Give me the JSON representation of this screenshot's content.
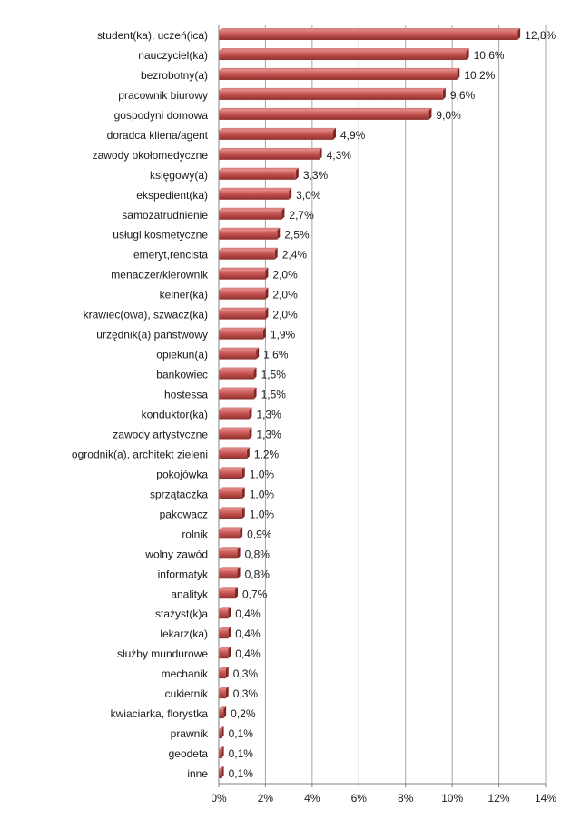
{
  "chart_data": {
    "type": "bar",
    "orientation": "horizontal",
    "title": "",
    "xlabel": "",
    "ylabel": "",
    "xlim": [
      0,
      14
    ],
    "x_ticks": [
      0,
      2,
      4,
      6,
      8,
      10,
      12,
      14
    ],
    "x_tick_labels": [
      "0%",
      "2%",
      "4%",
      "6%",
      "8%",
      "10%",
      "12%",
      "14%"
    ],
    "grid": true,
    "bar_color": "#c0504d",
    "categories": [
      "student(ka), uczeń(ica)",
      "nauczyciel(ka)",
      "bezrobotny(a)",
      "pracownik biurowy",
      "gospodyni domowa",
      "doradca kliena/agent",
      "zawody okołomedyczne",
      "księgowy(a)",
      "ekspedient(ka)",
      "samozatrudnienie",
      "usługi kosmetyczne",
      "emeryt,rencista",
      "menadzer/kierownik",
      "kelner(ka)",
      "krawiec(owa), szwacz(ka)",
      "urzędnik(a) państwowy",
      "opiekun(a)",
      "bankowiec",
      "hostessa",
      "konduktor(ka)",
      "zawody artystyczne",
      "ogrodnik(a), architekt zieleni",
      "pokojówka",
      "sprzątaczka",
      "pakowacz",
      "rolnik",
      "wolny zawód",
      "informatyk",
      "analityk",
      "stażyst(k)a",
      "lekarz(ka)",
      "służby mundurowe",
      "mechanik",
      "cukiernik",
      "kwiaciarka, florystka",
      "prawnik",
      "geodeta",
      "inne"
    ],
    "values": [
      12.8,
      10.6,
      10.2,
      9.6,
      9.0,
      4.9,
      4.3,
      3.3,
      3.0,
      2.7,
      2.5,
      2.4,
      2.0,
      2.0,
      2.0,
      1.9,
      1.6,
      1.5,
      1.5,
      1.3,
      1.3,
      1.2,
      1.0,
      1.0,
      1.0,
      0.9,
      0.8,
      0.8,
      0.7,
      0.4,
      0.4,
      0.4,
      0.3,
      0.3,
      0.2,
      0.1,
      0.1,
      0.1
    ],
    "value_labels": [
      "12,8%",
      "10,6%",
      "10,2%",
      "9,6%",
      "9,0%",
      "4,9%",
      "4,3%",
      "3,3%",
      "3,0%",
      "2,7%",
      "2,5%",
      "2,4%",
      "2,0%",
      "2,0%",
      "2,0%",
      "1,9%",
      "1,6%",
      "1,5%",
      "1,5%",
      "1,3%",
      "1,3%",
      "1,2%",
      "1,0%",
      "1,0%",
      "1,0%",
      "0,9%",
      "0,8%",
      "0,8%",
      "0,7%",
      "0,4%",
      "0,4%",
      "0,4%",
      "0,3%",
      "0,3%",
      "0,2%",
      "0,1%",
      "0,1%",
      "0,1%"
    ]
  }
}
